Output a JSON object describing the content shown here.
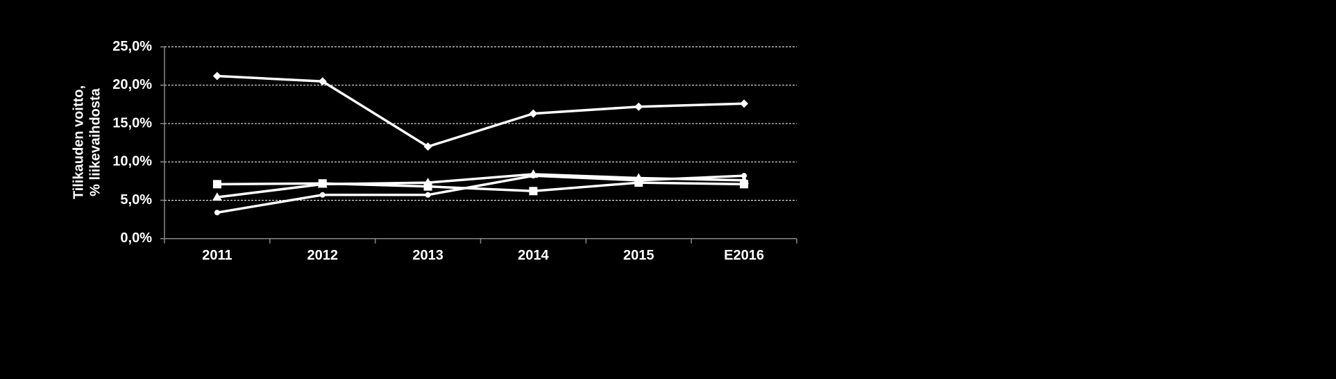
{
  "chart_data": {
    "type": "line",
    "ylabel": [
      "Tilikauden voitto,",
      "% liikevaihdosta"
    ],
    "categories": [
      "2011",
      "2012",
      "2013",
      "2014",
      "2015",
      "E2016"
    ],
    "series": [
      {
        "color": "#ffffff",
        "marker": "diamond",
        "values": [
          21.2,
          20.5,
          12.0,
          16.3,
          17.2,
          17.6
        ]
      },
      {
        "color": "#ffffff",
        "marker": "square",
        "values": [
          7.1,
          7.2,
          6.8,
          6.2,
          7.3,
          7.1
        ]
      },
      {
        "color": "#ffffff",
        "marker": "triangle",
        "values": [
          5.4,
          7.1,
          7.3,
          8.4,
          7.9,
          7.6
        ]
      },
      {
        "color": "#ffffff",
        "marker": "circle",
        "values": [
          3.4,
          5.7,
          5.7,
          8.2,
          7.6,
          8.2
        ]
      }
    ],
    "ylim": [
      0,
      25
    ],
    "yticks": [
      {
        "value": 0,
        "label": "0,0%"
      },
      {
        "value": 5,
        "label": "5,0%"
      },
      {
        "value": 10,
        "label": "10,0%"
      },
      {
        "value": 15,
        "label": "15,0%"
      },
      {
        "value": 20,
        "label": "20,0%"
      },
      {
        "value": 25,
        "label": "25,0%"
      }
    ],
    "grid": true
  }
}
